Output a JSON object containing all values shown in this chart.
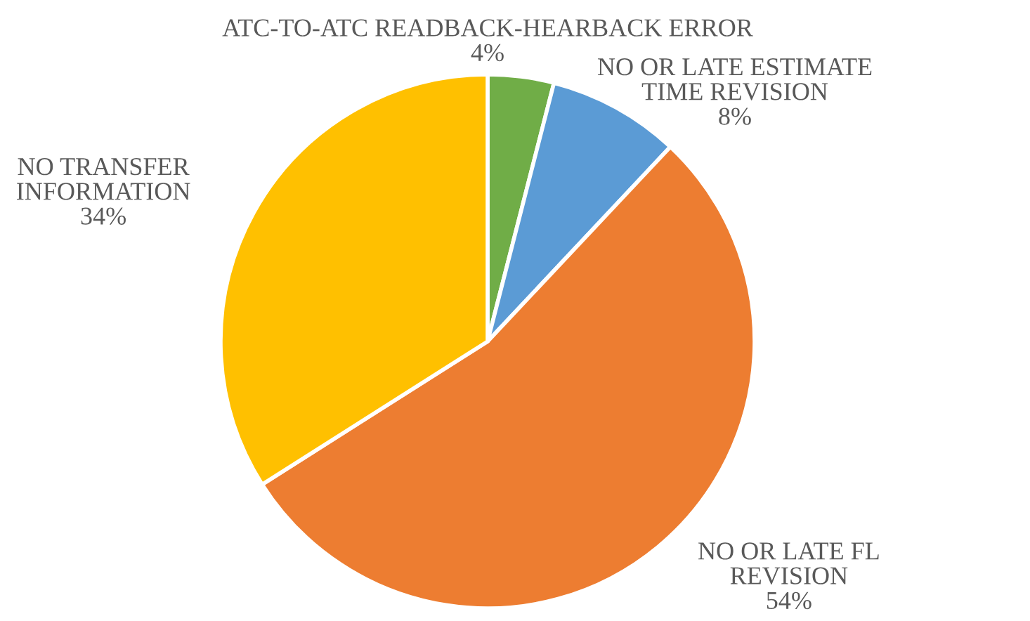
{
  "chart_data": {
    "type": "pie",
    "categories": [
      "ATC-TO-ATC READBACK-HEARBACK ERROR",
      "NO OR LATE ESTIMATE TIME REVISION",
      "NO OR LATE FL REVISION",
      "NO TRANSFER INFORMATION"
    ],
    "values": [
      4,
      8,
      54,
      34
    ],
    "value_labels": [
      "4%",
      "8%",
      "54%",
      "34%"
    ],
    "colors": [
      "#70ad47",
      "#5b9bd5",
      "#ed7d31",
      "#ffc000"
    ],
    "legend": false
  }
}
